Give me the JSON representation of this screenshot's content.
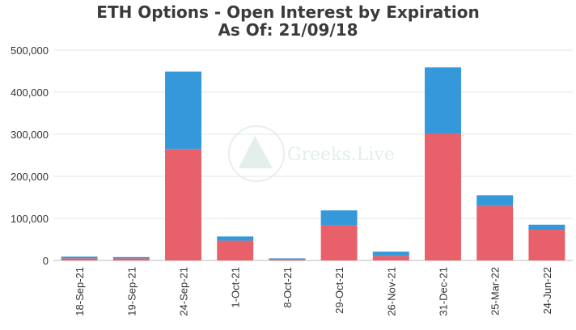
{
  "chart_data": {
    "type": "bar",
    "stacked": true,
    "title": "ETH Options - Open Interest by Expiration",
    "subtitle": "As Of: 21/09/18",
    "categories": [
      "18-Sep-21",
      "19-Sep-21",
      "24-Sep-21",
      "1-Oct-21",
      "8-Oct-21",
      "29-Oct-21",
      "26-Nov-21",
      "31-Dec-21",
      "25-Mar-22",
      "24-Jun-22"
    ],
    "series": [
      {
        "color": "#e8616a",
        "values": [
          5000,
          5000,
          265000,
          47000,
          3000,
          83000,
          11000,
          302000,
          130000,
          73000
        ]
      },
      {
        "color": "#3498db",
        "values": [
          4000,
          3000,
          184000,
          10000,
          2000,
          36000,
          10000,
          157000,
          25000,
          12000
        ]
      }
    ],
    "ylim": [
      0,
      500000
    ],
    "yticks": [
      "0",
      "100,000",
      "200,000",
      "300,000",
      "400,000",
      "500,000"
    ],
    "ytick_values": [
      0,
      100000,
      200000,
      300000,
      400000,
      500000
    ],
    "grid": true,
    "legend": "none",
    "watermark": "Greeks.Live"
  }
}
